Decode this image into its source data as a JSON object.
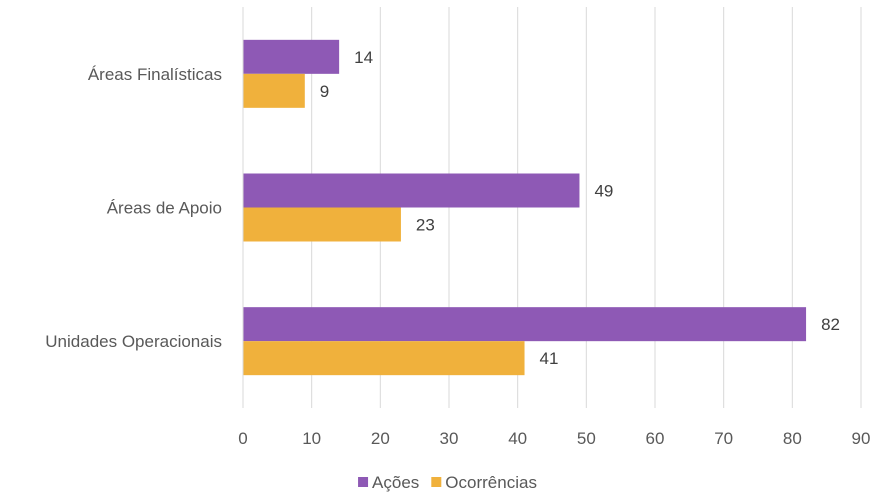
{
  "chart_data": {
    "type": "bar",
    "orientation": "horizontal",
    "categories": [
      "Áreas Finalísticas",
      "Áreas de Apoio",
      "Unidades Operacionais"
    ],
    "series": [
      {
        "name": "Ações",
        "values": [
          14,
          49,
          82
        ],
        "color": "#8E59B5"
      },
      {
        "name": "Ocorrências",
        "values": [
          9,
          23,
          41
        ],
        "color": "#F0B13C"
      }
    ],
    "xlim": [
      0,
      90
    ],
    "xticks": [
      0,
      10,
      20,
      30,
      40,
      50,
      60,
      70,
      80,
      90
    ],
    "xtick_labels": [
      "0",
      "10",
      "20",
      "30",
      "40",
      "50",
      "60",
      "70",
      "80",
      "90"
    ],
    "grid": "vertical",
    "legend_position": "bottom",
    "data_labels": true,
    "title": "",
    "xlabel": "",
    "ylabel": ""
  }
}
